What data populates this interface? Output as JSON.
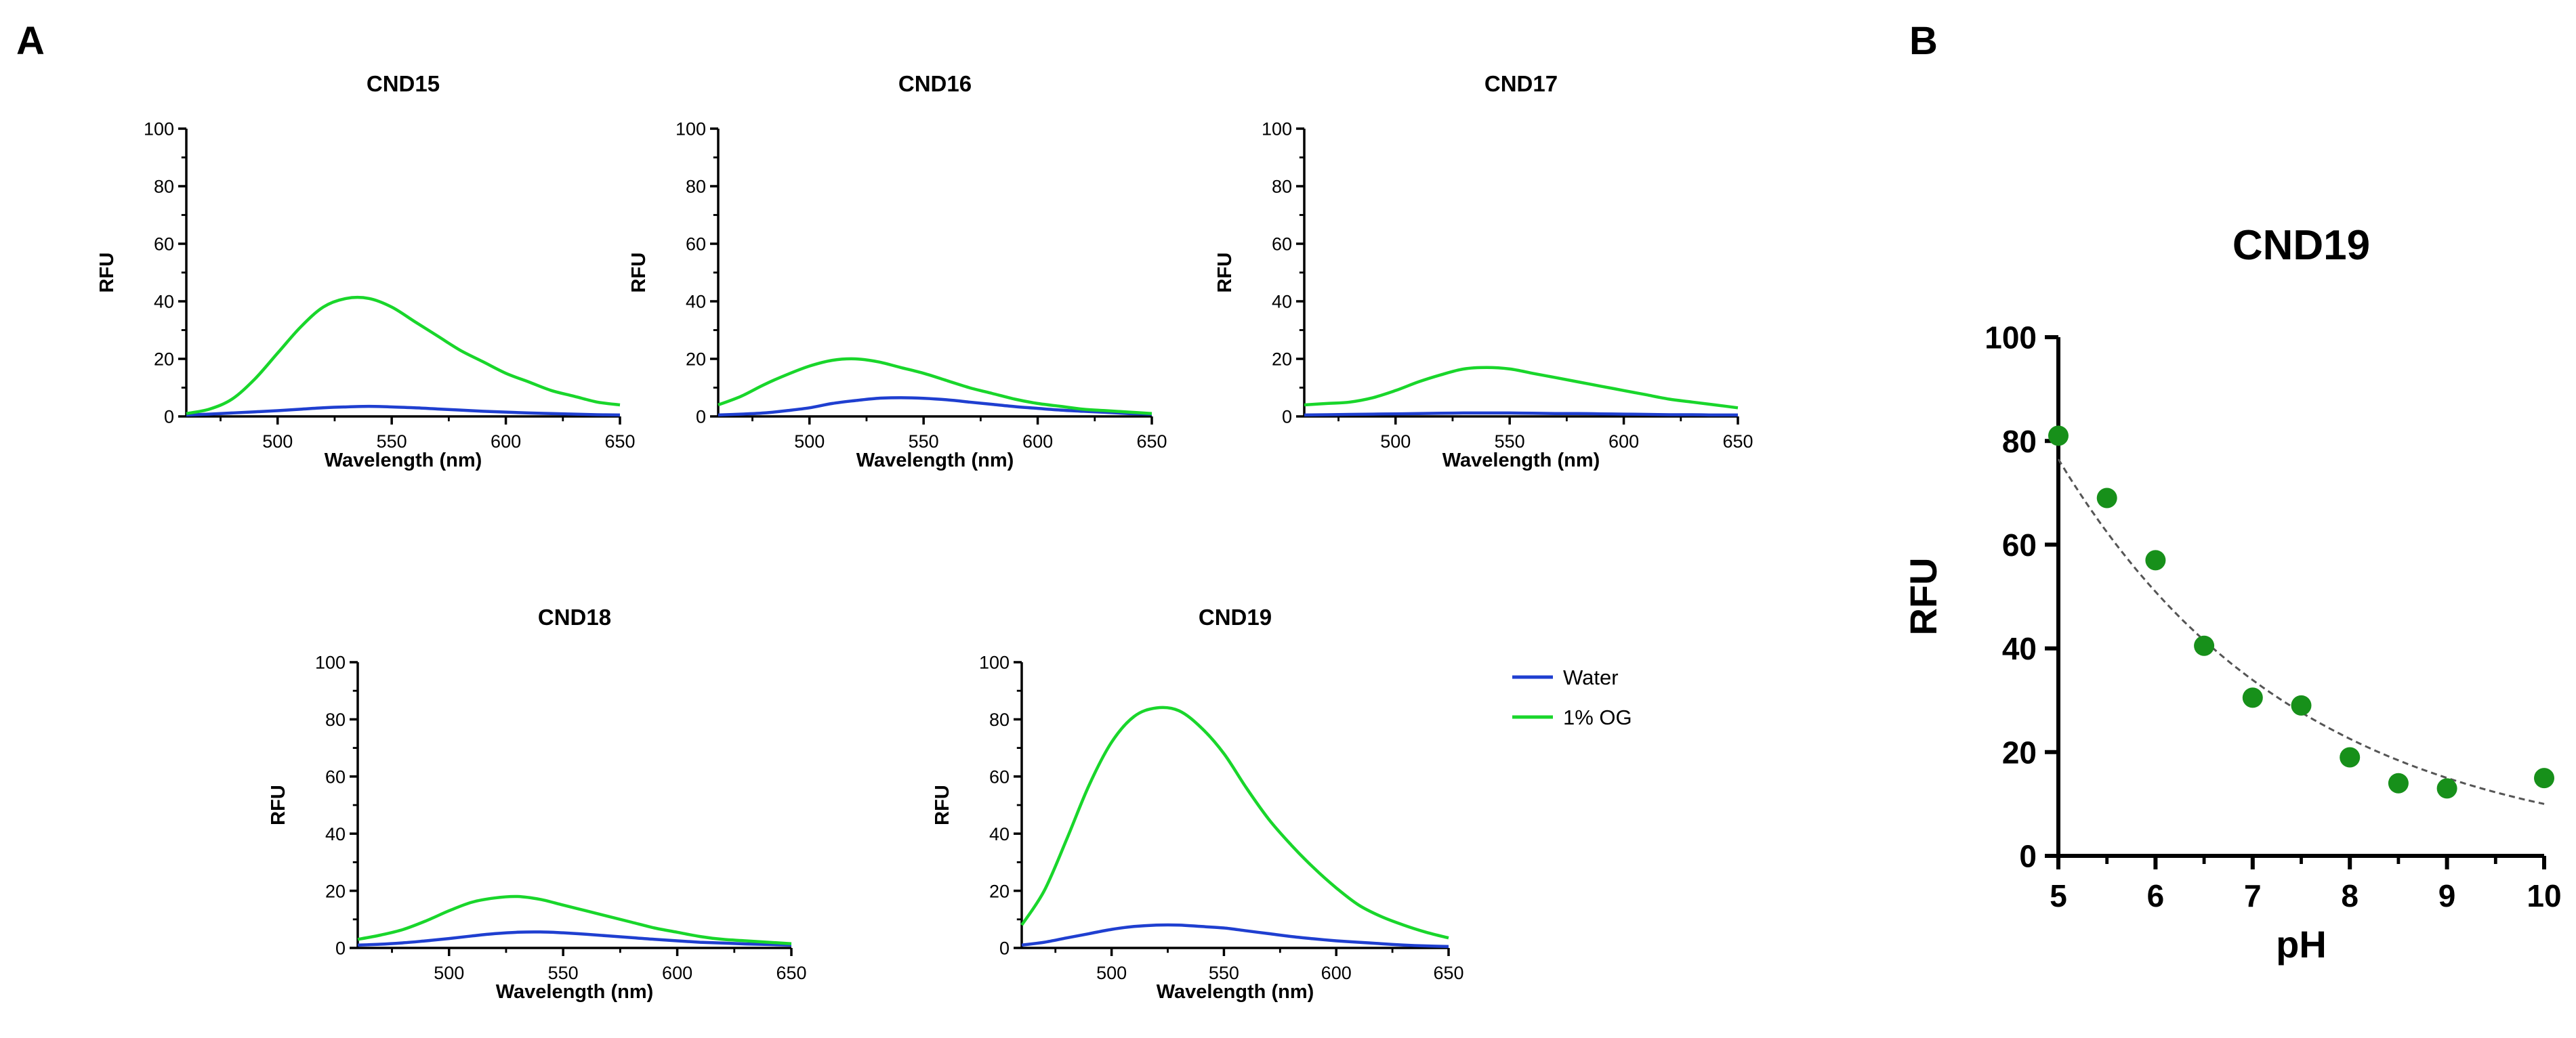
{
  "panels": {
    "a": "A",
    "b": "B"
  },
  "legend": {
    "water": "Water",
    "og": "1% OG"
  },
  "colors": {
    "water": "#1f3fd0",
    "og": "#19d62b",
    "points": "#17901a",
    "fit": "#555555",
    "axis": "#000000"
  },
  "chart_data": [
    {
      "type": "line",
      "title": "CND15",
      "xlabel": "Wavelength (nm)",
      "ylabel": "RFU",
      "xlim": [
        460,
        650
      ],
      "ylim": [
        0,
        100
      ],
      "xticks": [
        500,
        550,
        600,
        650
      ],
      "yticks": [
        0,
        20,
        40,
        60,
        80,
        100
      ],
      "x": [
        460,
        470,
        480,
        490,
        500,
        510,
        520,
        530,
        540,
        550,
        560,
        570,
        580,
        590,
        600,
        610,
        620,
        630,
        640,
        650
      ],
      "series": [
        {
          "name": "Water",
          "values": [
            0.5,
            0.8,
            1.2,
            1.6,
            2.0,
            2.5,
            3.0,
            3.3,
            3.5,
            3.3,
            3.0,
            2.6,
            2.2,
            1.8,
            1.5,
            1.2,
            1.0,
            0.8,
            0.6,
            0.5
          ]
        },
        {
          "name": "1% OG",
          "values": [
            1.0,
            2.5,
            6.0,
            13.0,
            22.0,
            31.0,
            38.0,
            41.0,
            41.0,
            38.0,
            33.0,
            28.0,
            23.0,
            19.0,
            15.0,
            12.0,
            9.0,
            7.0,
            5.0,
            4.0
          ]
        }
      ]
    },
    {
      "type": "line",
      "title": "CND16",
      "xlabel": "Wavelength (nm)",
      "ylabel": "RFU",
      "xlim": [
        460,
        650
      ],
      "ylim": [
        0,
        100
      ],
      "xticks": [
        500,
        550,
        600,
        650
      ],
      "yticks": [
        0,
        20,
        40,
        60,
        80,
        100
      ],
      "x": [
        460,
        470,
        480,
        490,
        500,
        510,
        520,
        530,
        540,
        550,
        560,
        570,
        580,
        590,
        600,
        610,
        620,
        630,
        640,
        650
      ],
      "series": [
        {
          "name": "Water",
          "values": [
            0.5,
            0.8,
            1.2,
            2.0,
            3.0,
            4.5,
            5.5,
            6.3,
            6.5,
            6.3,
            5.8,
            5.0,
            4.2,
            3.4,
            2.8,
            2.2,
            1.8,
            1.4,
            1.0,
            0.8
          ]
        },
        {
          "name": "1% OG",
          "values": [
            4.0,
            7.0,
            11.0,
            14.5,
            17.5,
            19.5,
            20.0,
            19.0,
            17.0,
            15.0,
            12.5,
            10.0,
            8.0,
            6.0,
            4.5,
            3.5,
            2.5,
            2.0,
            1.5,
            1.0
          ]
        }
      ]
    },
    {
      "type": "line",
      "title": "CND17",
      "xlabel": "Wavelength (nm)",
      "ylabel": "RFU",
      "xlim": [
        460,
        650
      ],
      "ylim": [
        0,
        100
      ],
      "xticks": [
        500,
        550,
        600,
        650
      ],
      "yticks": [
        0,
        20,
        40,
        60,
        80,
        100
      ],
      "x": [
        460,
        470,
        480,
        490,
        500,
        510,
        520,
        530,
        540,
        550,
        560,
        570,
        580,
        590,
        600,
        610,
        620,
        630,
        640,
        650
      ],
      "series": [
        {
          "name": "Water",
          "values": [
            0.5,
            0.6,
            0.7,
            0.8,
            0.9,
            1.0,
            1.1,
            1.2,
            1.2,
            1.2,
            1.1,
            1.0,
            1.0,
            0.9,
            0.8,
            0.7,
            0.6,
            0.6,
            0.5,
            0.5
          ]
        },
        {
          "name": "1% OG",
          "values": [
            4.0,
            4.5,
            5.0,
            6.5,
            9.0,
            12.0,
            14.5,
            16.5,
            17.0,
            16.5,
            15.0,
            13.5,
            12.0,
            10.5,
            9.0,
            7.5,
            6.0,
            5.0,
            4.0,
            3.0
          ]
        }
      ]
    },
    {
      "type": "line",
      "title": "CND18",
      "xlabel": "Wavelength (nm)",
      "ylabel": "RFU",
      "xlim": [
        460,
        650
      ],
      "ylim": [
        0,
        100
      ],
      "xticks": [
        500,
        550,
        600,
        650
      ],
      "yticks": [
        0,
        20,
        40,
        60,
        80,
        100
      ],
      "x": [
        460,
        470,
        480,
        490,
        500,
        510,
        520,
        530,
        540,
        550,
        560,
        570,
        580,
        590,
        600,
        610,
        620,
        630,
        640,
        650
      ],
      "series": [
        {
          "name": "Water",
          "values": [
            1.0,
            1.3,
            1.8,
            2.5,
            3.3,
            4.2,
            5.0,
            5.5,
            5.6,
            5.3,
            4.8,
            4.2,
            3.6,
            3.0,
            2.5,
            2.0,
            1.7,
            1.4,
            1.2,
            1.0
          ]
        },
        {
          "name": "1% OG",
          "values": [
            3.0,
            4.5,
            6.5,
            9.5,
            13.0,
            16.0,
            17.5,
            18.0,
            17.0,
            15.0,
            13.0,
            11.0,
            9.0,
            7.0,
            5.5,
            4.0,
            3.0,
            2.5,
            2.0,
            1.5
          ]
        }
      ]
    },
    {
      "type": "line",
      "title": "CND19",
      "xlabel": "Wavelength (nm)",
      "ylabel": "RFU",
      "xlim": [
        460,
        650
      ],
      "ylim": [
        0,
        100
      ],
      "xticks": [
        500,
        550,
        600,
        650
      ],
      "yticks": [
        0,
        20,
        40,
        60,
        80,
        100
      ],
      "x": [
        460,
        470,
        480,
        490,
        500,
        510,
        520,
        530,
        540,
        550,
        560,
        570,
        580,
        590,
        600,
        610,
        620,
        630,
        640,
        650
      ],
      "series": [
        {
          "name": "Water",
          "values": [
            1.0,
            2.0,
            3.5,
            5.0,
            6.5,
            7.5,
            8.0,
            8.0,
            7.5,
            7.0,
            6.0,
            5.0,
            4.0,
            3.2,
            2.5,
            2.0,
            1.5,
            1.0,
            0.7,
            0.5
          ]
        },
        {
          "name": "1% OG",
          "values": [
            8.0,
            20.0,
            38.0,
            57.0,
            72.0,
            81.0,
            84.0,
            83.0,
            77.0,
            68.0,
            56.0,
            45.0,
            36.0,
            28.0,
            21.0,
            15.0,
            11.0,
            8.0,
            5.5,
            3.5
          ]
        }
      ]
    },
    {
      "type": "scatter",
      "title": "CND19",
      "xlabel": "pH",
      "ylabel": "RFU",
      "xlim": [
        5,
        10
      ],
      "ylim": [
        0,
        100
      ],
      "xticks": [
        5,
        6,
        7,
        8,
        9,
        10
      ],
      "yticks": [
        0,
        20,
        40,
        60,
        80,
        100
      ],
      "x": [
        5.0,
        5.5,
        6.0,
        6.5,
        7.0,
        7.5,
        8.0,
        8.5,
        9.0,
        10.0
      ],
      "values": [
        81,
        69,
        57,
        40.5,
        30.5,
        29,
        19,
        14,
        13,
        15
      ],
      "fit": {
        "type": "exponential decay",
        "dashed": true
      },
      "grid": false
    }
  ]
}
